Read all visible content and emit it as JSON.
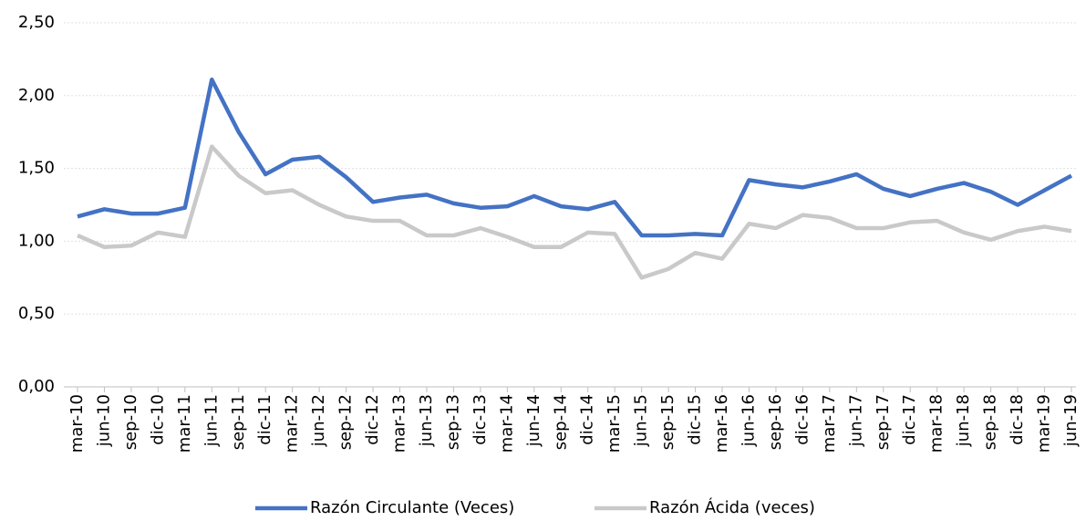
{
  "chart_data": {
    "type": "line",
    "categories": [
      "mar-10",
      "jun-10",
      "sep-10",
      "dic-10",
      "mar-11",
      "jun-11",
      "sep-11",
      "dic-11",
      "mar-12",
      "jun-12",
      "sep-12",
      "dic-12",
      "mar-13",
      "jun-13",
      "sep-13",
      "dic-13",
      "mar-14",
      "jun-14",
      "sep-14",
      "dic-14",
      "mar-15",
      "jun-15",
      "sep-15",
      "dic-15",
      "mar-16",
      "jun-16",
      "sep-16",
      "dic-16",
      "mar-17",
      "jun-17",
      "sep-17",
      "dic-17",
      "mar-18",
      "jun-18",
      "sep-18",
      "dic-18",
      "mar-19",
      "jun-19"
    ],
    "series": [
      {
        "name": "Razón Circulante (Veces)",
        "color": "#4472c4",
        "values": [
          1.17,
          1.22,
          1.19,
          1.19,
          1.23,
          2.11,
          1.75,
          1.46,
          1.56,
          1.58,
          1.44,
          1.27,
          1.3,
          1.32,
          1.26,
          1.23,
          1.24,
          1.31,
          1.24,
          1.22,
          1.27,
          1.04,
          1.04,
          1.05,
          1.04,
          1.42,
          1.39,
          1.37,
          1.41,
          1.46,
          1.36,
          1.31,
          1.36,
          1.4,
          1.34,
          1.25,
          1.35,
          1.45
        ]
      },
      {
        "name": "Razón Ácida (veces)",
        "color": "#c9c9c9",
        "values": [
          1.04,
          0.96,
          0.97,
          1.06,
          1.03,
          1.65,
          1.45,
          1.33,
          1.35,
          1.25,
          1.17,
          1.14,
          1.14,
          1.04,
          1.04,
          1.09,
          1.03,
          0.96,
          0.96,
          1.06,
          1.05,
          0.75,
          0.81,
          0.92,
          0.88,
          1.12,
          1.09,
          1.18,
          1.16,
          1.09,
          1.09,
          1.13,
          1.14,
          1.06,
          1.01,
          1.07,
          1.1,
          1.07
        ]
      }
    ],
    "ylim": [
      0,
      2.5
    ],
    "yticks": [
      {
        "value": 0,
        "label": "0,00"
      },
      {
        "value": 0.5,
        "label": "0,50"
      },
      {
        "value": 1,
        "label": "1,00"
      },
      {
        "value": 1.5,
        "label": "1,50"
      },
      {
        "value": 2,
        "label": "2,00"
      },
      {
        "value": 2.5,
        "label": "2,50"
      }
    ],
    "grid": true,
    "legend": "bottom"
  }
}
